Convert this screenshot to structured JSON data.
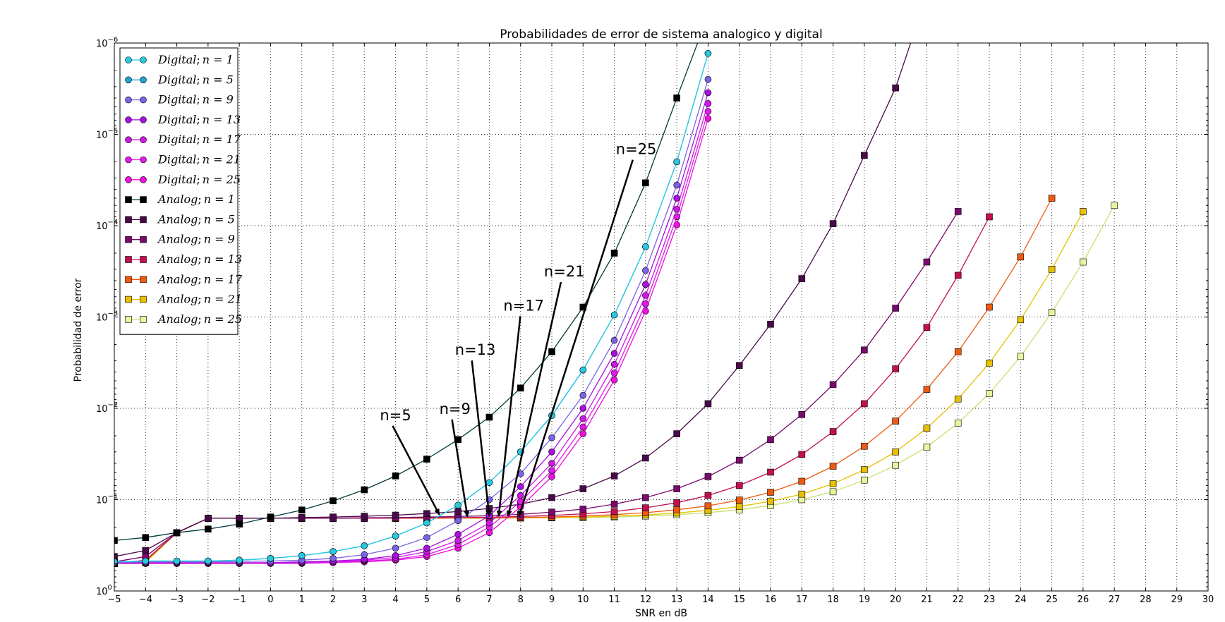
{
  "chart_data": {
    "type": "line",
    "title": "Probabilidades de error de sistema analogico y digital",
    "xlabel": "SNR en dB",
    "ylabel": "Probabilidad de error",
    "xlim": [
      -5,
      30
    ],
    "ylog": true,
    "yinverted": true,
    "ylim": [
      1,
      1e-06
    ],
    "grid": true,
    "legend_position": "top-left",
    "x_ticks": [
      -5,
      -4,
      -3,
      -2,
      -1,
      0,
      1,
      2,
      3,
      4,
      5,
      6,
      7,
      8,
      9,
      10,
      11,
      12,
      13,
      14,
      15,
      16,
      17,
      18,
      19,
      20,
      21,
      22,
      23,
      24,
      25,
      26,
      27,
      28,
      29,
      30
    ],
    "y_ticks": [
      {
        "value": 1,
        "base": "10",
        "exp": "0"
      },
      {
        "value": 0.1,
        "base": "10",
        "exp": "-1"
      },
      {
        "value": 0.01,
        "base": "10",
        "exp": "-2"
      },
      {
        "value": 0.001,
        "base": "10",
        "exp": "-3"
      },
      {
        "value": 0.0001,
        "base": "10",
        "exp": "-4"
      },
      {
        "value": 1e-05,
        "base": "10",
        "exp": "-5"
      },
      {
        "value": 1e-06,
        "base": "10",
        "exp": "-6"
      }
    ],
    "series": [
      {
        "name": "Digital; n=1",
        "prefix": "Digital",
        "n": "n = 1",
        "marker": "circle",
        "color": "#27c9e0",
        "x": [
          -5,
          -4,
          -3,
          -2,
          -1,
          0,
          1,
          2,
          3,
          4,
          5,
          6,
          7,
          8,
          9,
          10,
          11,
          12,
          13,
          14
        ],
        "y": [
          0.48,
          0.47,
          0.47,
          0.47,
          0.46,
          0.44,
          0.41,
          0.37,
          0.32,
          0.25,
          0.18,
          0.115,
          0.065,
          0.03,
          0.012,
          0.0038,
          0.00095,
          0.00017,
          2e-05,
          1.3e-06
        ]
      },
      {
        "name": "Digital; n=5",
        "prefix": "Digital",
        "n": "n = 5",
        "marker": "circle",
        "color": "#1fa5d6",
        "x": [
          -5,
          -4,
          -3,
          -2,
          -1,
          0,
          1,
          2,
          3,
          4,
          5,
          6,
          7,
          8,
          9,
          10,
          11,
          12,
          13,
          14
        ],
        "y": [
          0.48,
          0.47,
          0.47,
          0.47,
          0.46,
          0.44,
          0.41,
          0.37,
          0.32,
          0.25,
          0.18,
          0.115,
          0.065,
          0.03,
          0.012,
          0.0038,
          0.00095,
          0.00017,
          2e-05,
          1.3e-06
        ]
      },
      {
        "name": "Digital; n=9",
        "prefix": "Digital",
        "n": "n = 9",
        "marker": "circle",
        "color": "#7a63e6",
        "x": [
          -5,
          -4,
          -3,
          -2,
          -1,
          0,
          1,
          2,
          3,
          4,
          5,
          6,
          7,
          8,
          9,
          10,
          11,
          12,
          13,
          14
        ],
        "y": [
          0.49,
          0.48,
          0.48,
          0.48,
          0.475,
          0.47,
          0.46,
          0.44,
          0.4,
          0.34,
          0.26,
          0.17,
          0.1,
          0.052,
          0.021,
          0.0072,
          0.0018,
          0.00031,
          3.6e-05,
          2.5e-06
        ]
      },
      {
        "name": "Digital; n=13",
        "prefix": "Digital",
        "n": "n = 13",
        "marker": "circle",
        "color": "#a80fe0",
        "x": [
          -5,
          -4,
          -3,
          -2,
          -1,
          0,
          1,
          2,
          3,
          4,
          5,
          6,
          7,
          8,
          9,
          10,
          11,
          12,
          13,
          14
        ],
        "y": [
          0.495,
          0.49,
          0.49,
          0.49,
          0.49,
          0.49,
          0.48,
          0.47,
          0.45,
          0.41,
          0.34,
          0.24,
          0.15,
          0.072,
          0.03,
          0.01,
          0.0025,
          0.00044,
          5e-05,
          3.5e-06
        ]
      },
      {
        "name": "Digital; n=17",
        "prefix": "Digital",
        "n": "n = 17",
        "marker": "circle",
        "color": "#cf18e6",
        "x": [
          -5,
          -4,
          -3,
          -2,
          -1,
          0,
          1,
          2,
          3,
          4,
          5,
          6,
          7,
          8,
          9,
          10,
          11,
          12,
          13,
          14
        ],
        "y": [
          0.495,
          0.495,
          0.495,
          0.495,
          0.495,
          0.49,
          0.49,
          0.48,
          0.46,
          0.43,
          0.37,
          0.28,
          0.18,
          0.09,
          0.04,
          0.013,
          0.0033,
          0.00058,
          6.6e-05,
          4.6e-06
        ]
      },
      {
        "name": "Digital; n=21",
        "prefix": "Digital",
        "n": "n = 21",
        "marker": "circle",
        "color": "#e01ae8",
        "x": [
          -5,
          -4,
          -3,
          -2,
          -1,
          0,
          1,
          2,
          3,
          4,
          5,
          6,
          7,
          8,
          9,
          10,
          11,
          12,
          13,
          14
        ],
        "y": [
          0.5,
          0.5,
          0.5,
          0.5,
          0.5,
          0.495,
          0.495,
          0.49,
          0.47,
          0.45,
          0.4,
          0.31,
          0.2,
          0.105,
          0.048,
          0.016,
          0.0041,
          0.00072,
          8e-05,
          5.6e-06
        ]
      },
      {
        "name": "Digital; n=25",
        "prefix": "Digital",
        "n": "n = 25",
        "marker": "circle",
        "color": "#ee10dc",
        "x": [
          -5,
          -4,
          -3,
          -2,
          -1,
          0,
          1,
          2,
          3,
          4,
          5,
          6,
          7,
          8,
          9,
          10,
          11,
          12,
          13,
          14
        ],
        "y": [
          0.5,
          0.5,
          0.5,
          0.5,
          0.5,
          0.5,
          0.5,
          0.49,
          0.48,
          0.46,
          0.42,
          0.34,
          0.23,
          0.12,
          0.056,
          0.019,
          0.0049,
          0.00086,
          9.8e-05,
          6.7e-06
        ]
      },
      {
        "name": "Analog; n=1",
        "prefix": "Analog",
        "n": "n = 1",
        "marker": "square",
        "color": "#000000",
        "line_color": "#003a3a",
        "x": [
          -5,
          -4,
          -3,
          -2,
          -1,
          0,
          1,
          2,
          3,
          4,
          5,
          6,
          7,
          8,
          9,
          10,
          11,
          12,
          13,
          14
        ],
        "y": [
          0.28,
          0.26,
          0.23,
          0.21,
          0.185,
          0.155,
          0.13,
          0.103,
          0.078,
          0.055,
          0.036,
          0.022,
          0.0125,
          0.006,
          0.0024,
          0.00078,
          0.0002,
          3.4e-05,
          4e-06,
          5e-07
        ]
      },
      {
        "name": "Analog; n=5",
        "prefix": "Analog",
        "n": "n = 5",
        "marker": "square",
        "color": "#4a0a4a",
        "x": [
          -5,
          -4,
          -3,
          -2,
          -1,
          0,
          1,
          2,
          3,
          4,
          5,
          6,
          7,
          8,
          9,
          10,
          11,
          12,
          13,
          14,
          15,
          16,
          17,
          18,
          19,
          20,
          21
        ],
        "y": [
          0.42,
          0.36,
          0.23,
          0.16,
          0.16,
          0.16,
          0.157,
          0.155,
          0.152,
          0.148,
          0.142,
          0.135,
          0.125,
          0.112,
          0.095,
          0.076,
          0.055,
          0.035,
          0.019,
          0.0089,
          0.0034,
          0.0012,
          0.00038,
          9.5e-05,
          1.7e-05,
          3.1e-06,
          3e-07
        ]
      },
      {
        "name": "Analog; n=9",
        "prefix": "Analog",
        "n": "n = 9",
        "marker": "square",
        "color": "#7a0a6e",
        "x": [
          -5,
          -4,
          -3,
          -2,
          -1,
          0,
          1,
          2,
          3,
          4,
          5,
          6,
          7,
          8,
          9,
          10,
          11,
          12,
          13,
          14,
          15,
          16,
          17,
          18,
          19,
          20,
          21,
          22
        ],
        "y": [
          0.48,
          0.42,
          0.23,
          0.16,
          0.16,
          0.16,
          0.16,
          0.16,
          0.158,
          0.157,
          0.155,
          0.153,
          0.15,
          0.145,
          0.137,
          0.127,
          0.112,
          0.095,
          0.076,
          0.056,
          0.037,
          0.022,
          0.0117,
          0.0055,
          0.0023,
          0.0008,
          0.00025,
          7e-05
        ]
      },
      {
        "name": "Analog; n=13",
        "prefix": "Analog",
        "n": "n = 13",
        "marker": "square",
        "color": "#c40e52",
        "x": [
          -5,
          -4,
          -3,
          -2,
          -1,
          0,
          1,
          2,
          3,
          4,
          5,
          6,
          7,
          8,
          9,
          10,
          11,
          12,
          13,
          14,
          15,
          16,
          17,
          18,
          19,
          20,
          21,
          22,
          23
        ],
        "y": [
          0.5,
          0.46,
          0.23,
          0.16,
          0.16,
          0.16,
          0.16,
          0.16,
          0.16,
          0.159,
          0.158,
          0.157,
          0.156,
          0.153,
          0.149,
          0.143,
          0.135,
          0.123,
          0.108,
          0.09,
          0.07,
          0.05,
          0.032,
          0.018,
          0.0089,
          0.0037,
          0.0013,
          0.00035,
          8e-05
        ]
      },
      {
        "name": "Analog; n=17",
        "prefix": "Analog",
        "n": "n = 17",
        "marker": "square",
        "color": "#ee5a10",
        "x": [
          -5,
          -4,
          -3,
          -2,
          -1,
          0,
          1,
          2,
          3,
          4,
          5,
          6,
          7,
          8,
          9,
          10,
          11,
          12,
          13,
          14,
          15,
          16,
          17,
          18,
          19,
          20,
          21,
          22,
          23,
          24,
          25
        ],
        "y": [
          0.5,
          0.47,
          0.23,
          0.16,
          0.16,
          0.16,
          0.16,
          0.16,
          0.16,
          0.16,
          0.16,
          0.159,
          0.158,
          0.157,
          0.155,
          0.151,
          0.146,
          0.139,
          0.129,
          0.117,
          0.101,
          0.083,
          0.063,
          0.043,
          0.026,
          0.0138,
          0.0062,
          0.0024,
          0.00078,
          0.00022,
          5e-05
        ]
      },
      {
        "name": "Analog; n=21",
        "prefix": "Analog",
        "n": "n = 21",
        "marker": "square",
        "color": "#e8c000",
        "x": [
          -5,
          -4,
          -3,
          -2,
          -1,
          0,
          1,
          2,
          3,
          4,
          5,
          6,
          7,
          8,
          9,
          10,
          11,
          12,
          13,
          14,
          15,
          16,
          17,
          18,
          19,
          20,
          21,
          22,
          23,
          24,
          25,
          26
        ],
        "y": [
          0.5,
          0.48,
          0.23,
          0.16,
          0.16,
          0.16,
          0.16,
          0.16,
          0.16,
          0.16,
          0.16,
          0.16,
          0.159,
          0.158,
          0.157,
          0.155,
          0.152,
          0.147,
          0.14,
          0.131,
          0.119,
          0.104,
          0.087,
          0.067,
          0.047,
          0.03,
          0.0165,
          0.0079,
          0.0032,
          0.00107,
          0.0003,
          7e-05
        ]
      },
      {
        "name": "Analog; n=25",
        "prefix": "Analog",
        "n": "n = 25",
        "marker": "square",
        "color": "#e8f5a0",
        "line_color": "#c8e070",
        "x": [
          -5,
          -4,
          -3,
          -2,
          -1,
          0,
          1,
          2,
          3,
          4,
          5,
          6,
          7,
          8,
          9,
          10,
          11,
          12,
          13,
          14,
          15,
          16,
          17,
          18,
          19,
          20,
          21,
          22,
          23,
          24,
          25,
          26,
          27
        ],
        "y": [
          0.5,
          0.49,
          0.23,
          0.16,
          0.16,
          0.16,
          0.16,
          0.16,
          0.16,
          0.16,
          0.16,
          0.16,
          0.16,
          0.159,
          0.158,
          0.157,
          0.155,
          0.151,
          0.146,
          0.139,
          0.129,
          0.116,
          0.1,
          0.082,
          0.061,
          0.042,
          0.0265,
          0.0145,
          0.0069,
          0.0027,
          0.00089,
          0.00025,
          6e-05
        ]
      }
    ],
    "annotations": [
      {
        "text": "n=5",
        "text_x": 3.5,
        "text_y": 0.0135,
        "arrow_x": 5.4,
        "arrow_y": 0.146
      },
      {
        "text": "n=9",
        "text_x": 5.4,
        "text_y": 0.0115,
        "arrow_x": 6.3,
        "arrow_y": 0.153
      },
      {
        "text": "n=13",
        "text_x": 5.9,
        "text_y": 0.0026,
        "arrow_x": 7.0,
        "arrow_y": 0.152
      },
      {
        "text": "n=17",
        "text_x": 7.45,
        "text_y": 0.00085,
        "arrow_x": 7.3,
        "arrow_y": 0.152
      },
      {
        "text": "n=21",
        "text_x": 8.75,
        "text_y": 0.00036,
        "arrow_x": 7.6,
        "arrow_y": 0.152
      },
      {
        "text": "n=25",
        "text_x": 11.05,
        "text_y": 1.65e-05,
        "arrow_x": 7.95,
        "arrow_y": 0.152
      }
    ]
  }
}
